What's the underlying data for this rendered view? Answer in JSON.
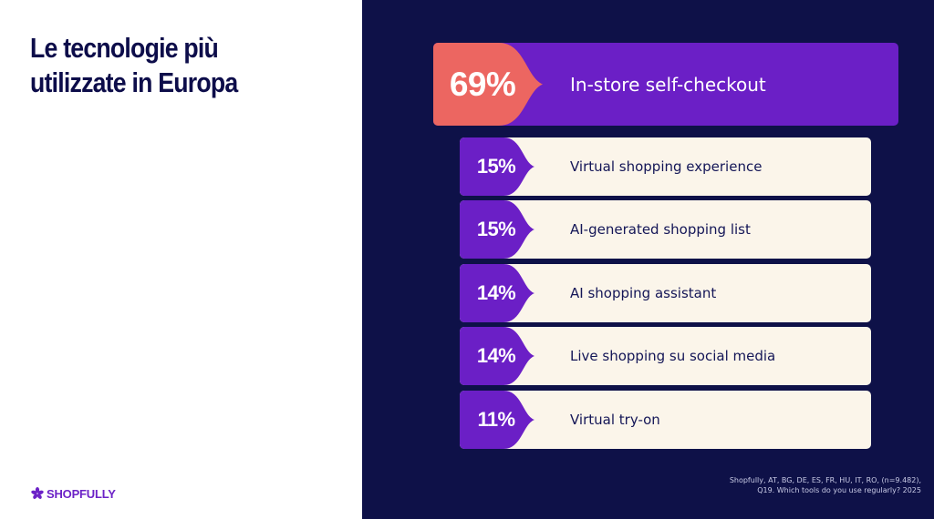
{
  "title": {
    "line1": "Le tecnologie più",
    "line2": "utilizzate in Europa"
  },
  "brand": {
    "logo_icon": "asterisk-icon",
    "name": "SHOPFULLY"
  },
  "colors": {
    "navy": "#0e1148",
    "purple": "#6b1fc6",
    "coral": "#ec6661",
    "cream": "#fbf5ea",
    "title_text": "#0d0d4a"
  },
  "highlight": {
    "value": "69%",
    "label": "In-store self-checkout"
  },
  "items": [
    {
      "value": "15%",
      "label": "Virtual shopping experience"
    },
    {
      "value": "15%",
      "label": "AI-generated shopping list"
    },
    {
      "value": "14%",
      "label": "AI shopping assistant"
    },
    {
      "value": "14%",
      "label": "Live shopping su social media"
    },
    {
      "value": "11%",
      "label": "Virtual try-on"
    }
  ],
  "source": {
    "line1": "Shopfully, AT, BG, DE, ES, FR, HU, IT, RO, (n=9.482),",
    "line2": "Q19. Which tools do you use regularly? 2025"
  }
}
